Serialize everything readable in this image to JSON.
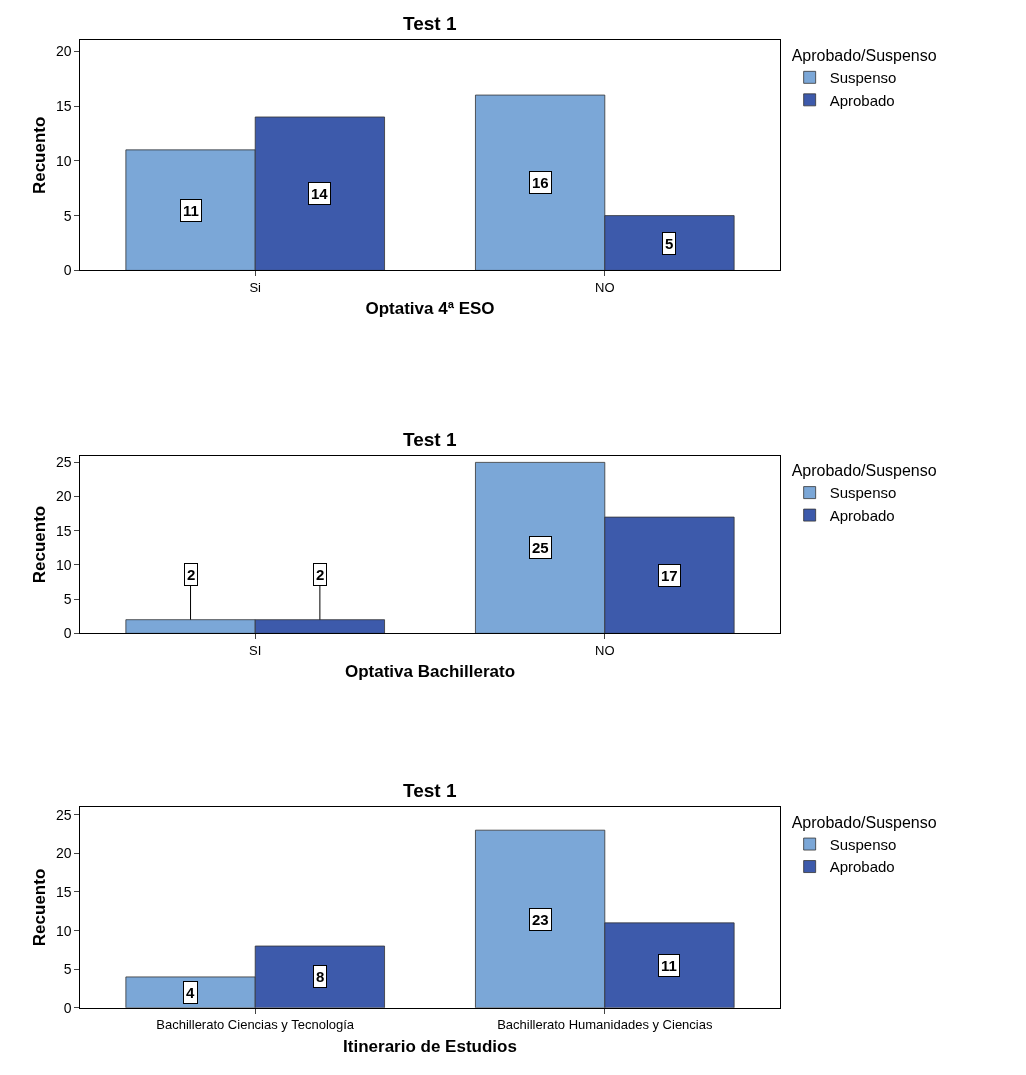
{
  "chart_data": [
    {
      "type": "bar",
      "title": "Test 1",
      "xlabel": "Optativa 4ª ESO",
      "ylabel": "Recuento",
      "legend_title": "Aprobado/Suspenso",
      "categories": [
        "Si",
        "NO"
      ],
      "series": [
        {
          "name": "Suspenso",
          "color": "#7ba7d7",
          "values": [
            11,
            16
          ]
        },
        {
          "name": "Aprobado",
          "color": "#3d5aab",
          "values": [
            14,
            5
          ]
        }
      ],
      "ylim": [
        0,
        21
      ],
      "yticks": [
        0,
        5,
        10,
        15,
        20
      ],
      "data_labels": true,
      "legend": "top right"
    },
    {
      "type": "bar",
      "title": "Test 1",
      "xlabel": "Optativa Bachillerato",
      "ylabel": "Recuento",
      "legend_title": "Aprobado/Suspenso",
      "categories": [
        "SI",
        "NO"
      ],
      "series": [
        {
          "name": "Suspenso",
          "color": "#7ba7d7",
          "values": [
            2,
            25
          ]
        },
        {
          "name": "Aprobado",
          "color": "#3d5aab",
          "values": [
            2,
            17
          ]
        }
      ],
      "ylim": [
        0,
        26
      ],
      "yticks": [
        0,
        5,
        10,
        15,
        20,
        25
      ],
      "data_labels": true,
      "legend": "top right"
    },
    {
      "type": "bar",
      "title": "Test 1",
      "xlabel": "Itinerario de Estudios",
      "ylabel": "Recuento",
      "legend_title": "Aprobado/Suspenso",
      "categories": [
        "Bachillerato Ciencias y Tecnología",
        "Bachillerato Humanidades y Ciencias"
      ],
      "series": [
        {
          "name": "Suspenso",
          "color": "#7ba7d7",
          "values": [
            4,
            23
          ]
        },
        {
          "name": "Aprobado",
          "color": "#3d5aab",
          "values": [
            8,
            11
          ]
        }
      ],
      "ylim": [
        0,
        26
      ],
      "yticks": [
        0,
        5,
        10,
        15,
        20,
        25
      ],
      "data_labels": true,
      "legend": "top right"
    }
  ]
}
